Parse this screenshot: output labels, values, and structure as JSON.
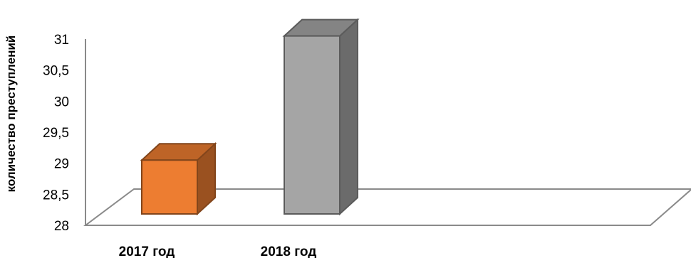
{
  "chart_data": {
    "type": "bar",
    "style": "3d-column",
    "categories": [
      "2017 год",
      "2018 год"
    ],
    "series": [
      {
        "values": [
          29.05,
          31.05
        ],
        "colors": [
          "#ed7d31",
          "#a5a5a5"
        ]
      }
    ],
    "title": "",
    "xlabel": "",
    "ylabel": "количество преступлений",
    "ylim": [
      28,
      31
    ],
    "yticks": [
      28,
      28.5,
      29,
      29.5,
      30,
      30.5,
      31
    ],
    "ytick_labels": [
      "28",
      "28,5",
      "29",
      "29,5",
      "30",
      "30,5",
      "31"
    ],
    "grid": false,
    "legend": "none"
  }
}
